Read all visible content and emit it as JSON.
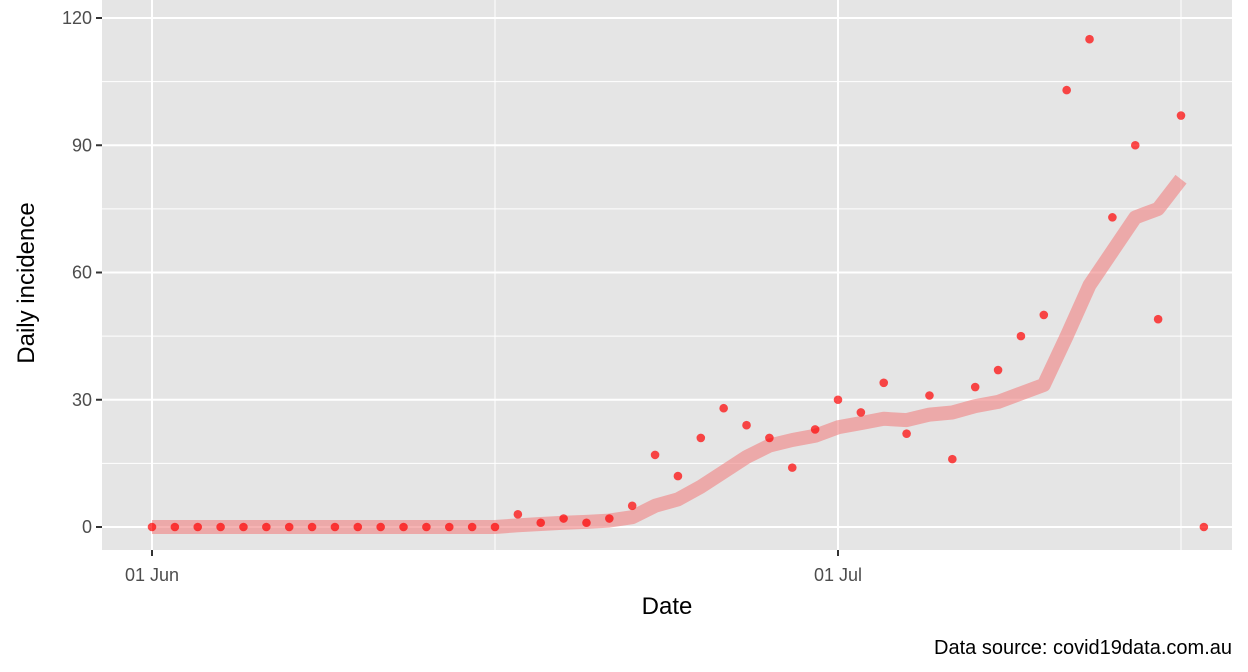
{
  "chart_data": {
    "type": "scatter",
    "xlabel": "Date",
    "ylabel": "Daily incidence",
    "caption": "Data source: covid19data.com.au",
    "ylim": [
      -2,
      120
    ],
    "y_ticks": [
      0,
      30,
      60,
      90,
      120
    ],
    "x_range": [
      "2020-05-29",
      "2020-07-31"
    ],
    "x_ticks": [
      {
        "date": "2020-06-01",
        "label": "01 Jun"
      },
      {
        "date": "2020-07-01",
        "label": "01 Jul"
      }
    ],
    "x_minor_gridlines": [
      "2020-06-16",
      "2020-07-16"
    ],
    "grid": true,
    "legend": "none",
    "colors": {
      "panel": "#e5e5e5",
      "gridline": "#ffffff",
      "points": "#ff0000",
      "smooth_line": "#f08080"
    },
    "series": [
      {
        "type": "points",
        "x": [
          "2020-06-01",
          "2020-06-02",
          "2020-06-03",
          "2020-06-04",
          "2020-06-05",
          "2020-06-06",
          "2020-06-07",
          "2020-06-08",
          "2020-06-09",
          "2020-06-10",
          "2020-06-11",
          "2020-06-12",
          "2020-06-13",
          "2020-06-14",
          "2020-06-15",
          "2020-06-16",
          "2020-06-17",
          "2020-06-18",
          "2020-06-19",
          "2020-06-20",
          "2020-06-21",
          "2020-06-22",
          "2020-06-23",
          "2020-06-24",
          "2020-06-25",
          "2020-06-26",
          "2020-06-27",
          "2020-06-28",
          "2020-06-29",
          "2020-06-30",
          "2020-07-01",
          "2020-07-02",
          "2020-07-03",
          "2020-07-04",
          "2020-07-05",
          "2020-07-06",
          "2020-07-07",
          "2020-07-08",
          "2020-07-09",
          "2020-07-10",
          "2020-07-11",
          "2020-07-12",
          "2020-07-13",
          "2020-07-14",
          "2020-07-15",
          "2020-07-16",
          "2020-07-17"
        ],
        "values": [
          0,
          0,
          0,
          0,
          0,
          0,
          0,
          0,
          0,
          0,
          0,
          0,
          0,
          0,
          0,
          0,
          3,
          1,
          2,
          1,
          2,
          5,
          17,
          12,
          21,
          28,
          24,
          21,
          14,
          23,
          30,
          27,
          34,
          22,
          31,
          16,
          33,
          37,
          45,
          50,
          103,
          115,
          73,
          90,
          49,
          97,
          0
        ]
      },
      {
        "type": "smooth_line",
        "x": [
          "2020-06-01",
          "2020-06-02",
          "2020-06-03",
          "2020-06-04",
          "2020-06-05",
          "2020-06-06",
          "2020-06-07",
          "2020-06-08",
          "2020-06-09",
          "2020-06-10",
          "2020-06-11",
          "2020-06-12",
          "2020-06-13",
          "2020-06-14",
          "2020-06-15",
          "2020-06-16",
          "2020-06-17",
          "2020-06-18",
          "2020-06-19",
          "2020-06-20",
          "2020-06-21",
          "2020-06-22",
          "2020-06-23",
          "2020-06-24",
          "2020-06-25",
          "2020-06-26",
          "2020-06-27",
          "2020-06-28",
          "2020-06-29",
          "2020-06-30",
          "2020-07-01",
          "2020-07-02",
          "2020-07-03",
          "2020-07-04",
          "2020-07-05",
          "2020-07-06",
          "2020-07-07",
          "2020-07-08",
          "2020-07-09",
          "2020-07-10",
          "2020-07-11",
          "2020-07-12",
          "2020-07-13",
          "2020-07-14",
          "2020-07-15",
          "2020-07-16"
        ],
        "values": [
          0,
          0,
          0,
          0,
          0,
          0,
          0,
          0,
          0,
          0,
          0,
          0,
          0,
          0,
          0,
          0,
          0.4,
          0.7,
          1.0,
          1.2,
          1.5,
          2.3,
          5.0,
          6.5,
          9.5,
          13,
          16.5,
          19.2,
          20.5,
          21.5,
          23.5,
          24.5,
          25.5,
          25.2,
          26.5,
          27,
          28.5,
          29.5,
          31.5,
          33.5,
          45,
          57,
          65,
          73,
          75,
          82
        ]
      }
    ]
  }
}
